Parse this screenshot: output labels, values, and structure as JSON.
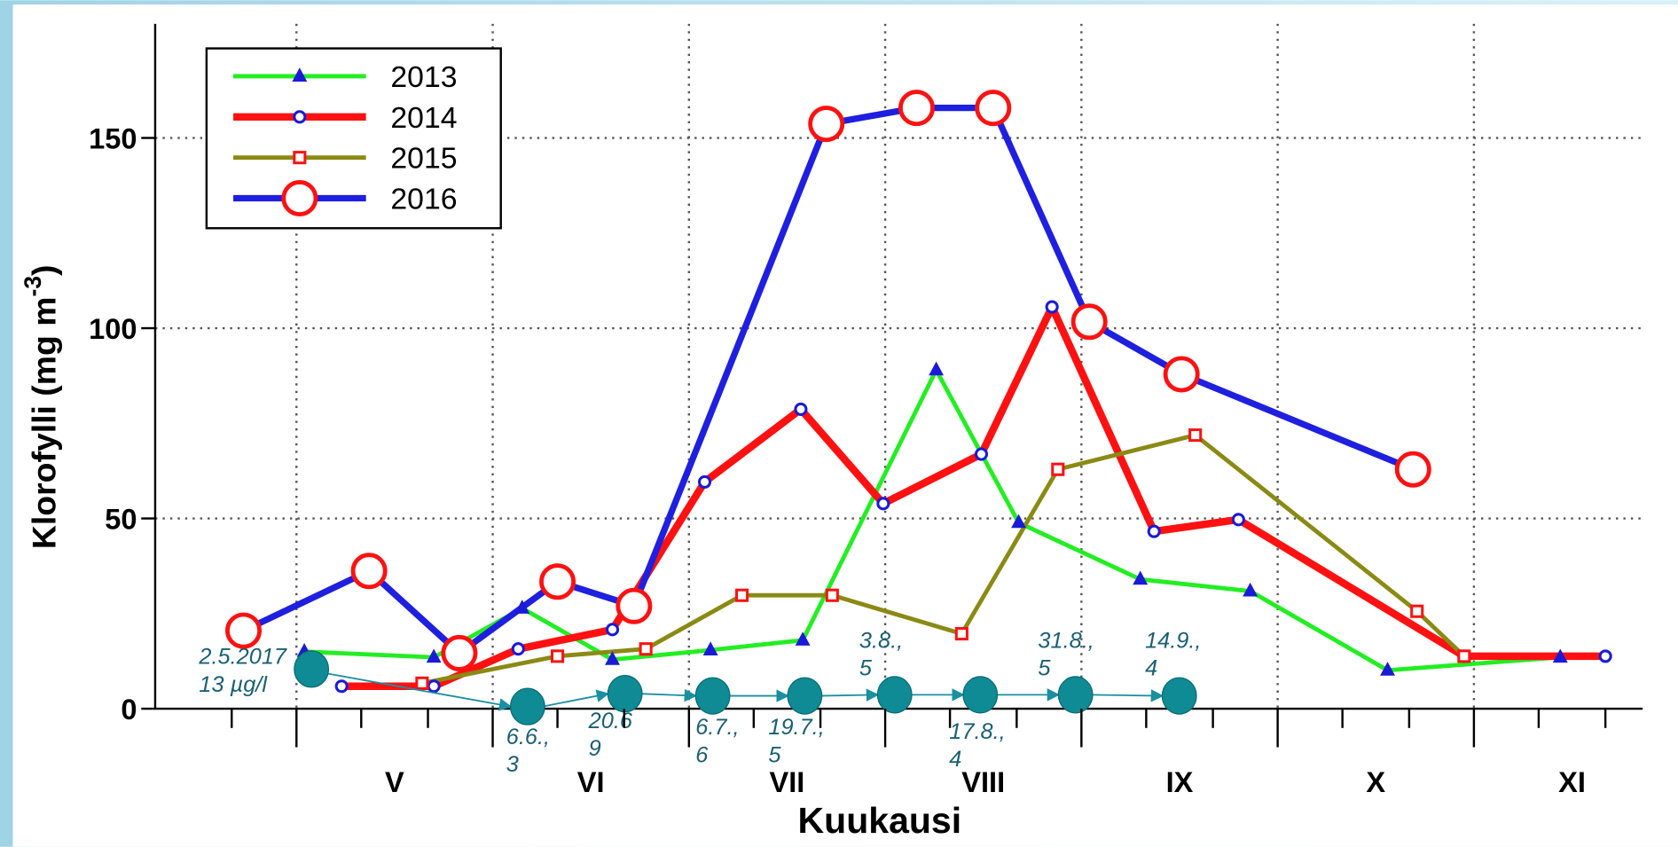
{
  "chart_data": {
    "type": "line",
    "ylabel": [
      "Klorofylli (mg m",
      "-3",
      ")"
    ],
    "xlabel": "Kuukausi",
    "xlim": [
      4.28,
      11.86
    ],
    "ylim": [
      0,
      180
    ],
    "yticks": [
      0,
      50,
      100,
      150
    ],
    "xticks": [
      {
        "value": 5.5,
        "label": "V"
      },
      {
        "value": 6.5,
        "label": "VI"
      },
      {
        "value": 7.5,
        "label": "VII"
      },
      {
        "value": 8.5,
        "label": "VIII"
      },
      {
        "value": 9.5,
        "label": "IX"
      },
      {
        "value": 10.5,
        "label": "X"
      },
      {
        "value": 11.5,
        "label": "XI"
      }
    ],
    "xgrid": [
      5,
      6,
      7,
      8,
      9,
      10,
      11
    ],
    "xminor_ticks": [
      4.67,
      5.33,
      5.67,
      6.33,
      6.67,
      7.33,
      7.67,
      8.33,
      8.67,
      9.33,
      9.67,
      10.33,
      10.67,
      11.33,
      11.67
    ],
    "grid": true,
    "legend": "upper left",
    "series": [
      {
        "name": "2013",
        "color": "#22ee22",
        "marker": "triangle",
        "marker_color": "#1a1ad8",
        "x": [
          5.04,
          5.7,
          6.15,
          6.61,
          7.11,
          7.58,
          8.26,
          8.68,
          9.3,
          9.86,
          10.56,
          11.44
        ],
        "values": [
          15,
          13.5,
          26.4,
          12.9,
          15.4,
          18,
          89,
          48.9,
          34,
          30.9,
          10.1,
          13.5
        ]
      },
      {
        "name": "2014",
        "color": "#ff1111",
        "marker": "circle",
        "marker_color": "#1a1ad8",
        "x": [
          5.23,
          5.7,
          6.13,
          6.61,
          7.08,
          7.57,
          7.99,
          8.49,
          8.85,
          9.37,
          9.8,
          10.95,
          11.67
        ],
        "values": [
          5.9,
          5.9,
          15.7,
          20.8,
          59.6,
          78.7,
          53.9,
          66.9,
          105.6,
          46.6,
          49.7,
          13.8,
          13.8
        ]
      },
      {
        "name": "2015",
        "color": "#8a8a14",
        "marker": "square",
        "marker_color": "#ff1111",
        "x": [
          5.64,
          6.33,
          6.78,
          7.27,
          7.73,
          8.39,
          8.88,
          9.58,
          10.71,
          10.95
        ],
        "values": [
          6.7,
          13.8,
          15.7,
          29.8,
          29.8,
          19.7,
          62.9,
          71.9,
          25.6,
          13.8
        ]
      },
      {
        "name": "2016",
        "color": "#1f1fe0",
        "marker": "bigcircle",
        "marker_color": "#ff1111",
        "x": [
          4.73,
          5.37,
          5.83,
          6.33,
          6.72,
          7.7,
          8.16,
          8.55,
          9.04,
          9.51,
          10.69
        ],
        "values": [
          20.5,
          36.2,
          14.6,
          33.4,
          27,
          153.7,
          157.9,
          157.9,
          101.7,
          87.9,
          62.9
        ]
      }
    ],
    "annotations": [
      [
        "2.5.2017",
        "13 µg/l"
      ],
      [
        "6.6.,",
        "3"
      ],
      [
        "20.6",
        "9"
      ],
      [
        "6.7.,",
        "6"
      ],
      [
        "19.7.,",
        "5"
      ],
      [
        "3.8.,",
        "5"
      ],
      [
        "17.8.,",
        "4"
      ],
      [
        "31.8.,",
        "5"
      ],
      [
        "14.9.,",
        "4"
      ]
    ]
  }
}
